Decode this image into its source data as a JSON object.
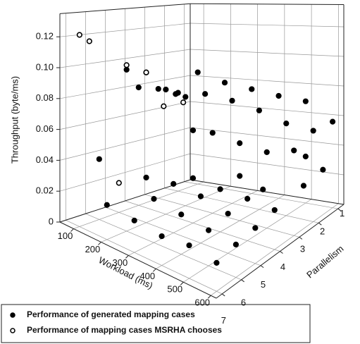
{
  "chart_data": {
    "type": "scatter3d",
    "xlabel": "Workload (ms)",
    "ylabel": "Parallelism",
    "zlabel": "Throughput (byte/ms)",
    "xlim": [
      50,
      620
    ],
    "ylim": [
      0.7,
      7.3
    ],
    "zlim": [
      0,
      0.135
    ],
    "xticks": [
      100,
      200,
      300,
      400,
      500,
      600
    ],
    "yticks": [
      1,
      2,
      3,
      4,
      5,
      6,
      7
    ],
    "zticks": [
      0,
      0.02,
      0.04,
      0.06,
      0.08,
      {
        "value": 0.1,
        "label": "0.10"
      },
      0.12
    ],
    "grid": true,
    "series": [
      {
        "name": "Performance of generated mapping cases",
        "marker": "filled",
        "color": "#000000",
        "x": [
          200,
          200,
          200,
          100,
          200,
          100,
          200,
          100,
          200,
          100,
          200,
          300,
          300,
          400,
          400,
          500,
          500,
          600,
          600,
          300,
          400,
          500,
          300,
          600,
          100,
          200,
          300,
          400,
          500,
          600,
          300,
          400,
          500,
          600,
          200,
          300,
          400,
          500,
          600,
          300,
          400,
          500,
          600,
          400,
          500,
          600,
          600,
          500
        ],
        "y": [
          6,
          5,
          4,
          4,
          3.5,
          3,
          3,
          2,
          2,
          1,
          1,
          1,
          2,
          1,
          2,
          1,
          2,
          1,
          2,
          3,
          3,
          3,
          4,
          3,
          6,
          7,
          7,
          7,
          7,
          7,
          6,
          6,
          6,
          6,
          5,
          5,
          5,
          5,
          5,
          4,
          4,
          4,
          4,
          3,
          3.2,
          2.5,
          1.5,
          1
        ],
        "z": [
          0.105,
          0.1,
          0.085,
          0.082,
          0.08,
          0.078,
          0.076,
          0.072,
          0.074,
          0.084,
          0.078,
          0.075,
          0.072,
          0.072,
          0.068,
          0.07,
          0.062,
          0.058,
          0.06,
          0.055,
          0.052,
          0.05,
          0.062,
          0.055,
          0.04,
          0.022,
          0.02,
          0.018,
          0.02,
          0.017,
          0.028,
          0.025,
          0.022,
          0.02,
          0.03,
          0.032,
          0.03,
          0.025,
          0.022,
          0.03,
          0.028,
          0.027,
          0.025,
          0.03,
          0.027,
          0.028,
          0.03,
          0.032
        ]
      },
      {
        "name": "Performance of mapping cases MSRHA chooses",
        "marker": "hollow",
        "color": "#000000",
        "x": [
          100,
          100,
          200,
          200,
          300,
          300,
          100
        ],
        "y": [
          7,
          6.5,
          6,
          5,
          5.5,
          4.5,
          5
        ],
        "z": [
          0.124,
          0.119,
          0.108,
          0.1,
          0.085,
          0.083,
          0.02
        ]
      }
    ]
  }
}
